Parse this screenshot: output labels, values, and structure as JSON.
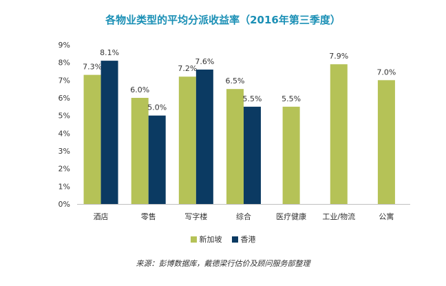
{
  "chart_data": {
    "type": "bar",
    "title": "各物业类型的平均分派收益率（2016年第三季度）",
    "categories": [
      "酒店",
      "零售",
      "写字楼",
      "综合",
      "医疗健康",
      "工业/物流",
      "公寓"
    ],
    "series": [
      {
        "name": "新加坡",
        "color": "#b5c257",
        "values": [
          7.3,
          6.0,
          7.2,
          6.5,
          5.5,
          7.9,
          7.0
        ],
        "labels": [
          "7.3%",
          "6.0%",
          "7.2%",
          "6.5%",
          "5.5%",
          "7.9%",
          "7.0%"
        ]
      },
      {
        "name": "香港",
        "color": "#0b3a62",
        "values": [
          8.1,
          5.0,
          7.6,
          5.5,
          null,
          null,
          null
        ],
        "labels": [
          "8.1%",
          "5.0%",
          "7.6%",
          "5.5%",
          null,
          null,
          null
        ]
      }
    ],
    "ylim": [
      0,
      9
    ],
    "yticks": [
      "0%",
      "1%",
      "2%",
      "3%",
      "4%",
      "5%",
      "6%",
      "7%",
      "8%",
      "9%"
    ],
    "xlabel": "",
    "ylabel": "",
    "grid": false,
    "legend_position": "bottom",
    "title_color": "#1a8fb5"
  },
  "source_note": "来源：彭博数据库，戴德梁行估价及顾问服务部整理"
}
